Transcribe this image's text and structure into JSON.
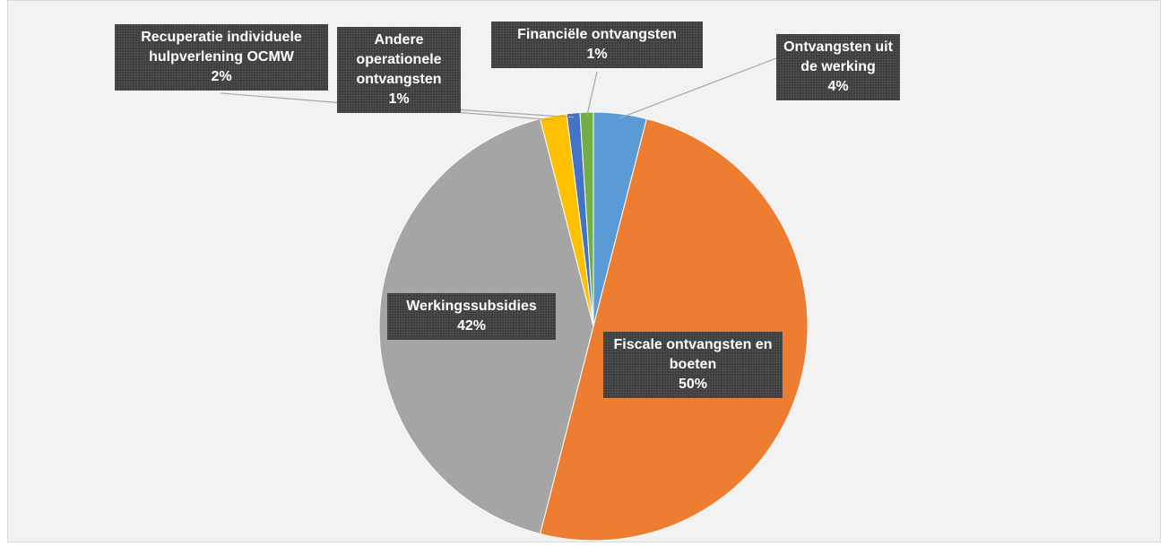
{
  "chart_data": {
    "type": "pie",
    "categories": [
      "Ontvangsten uit de werking",
      "Fiscale ontvangsten en boeten",
      "Werkingssubsidies",
      "Recuperatie individuele hulpverlening OCMW",
      "Andere operationele ontvangsten",
      "Financiële ontvangsten"
    ],
    "values": [
      4,
      50,
      42,
      2,
      1,
      1
    ],
    "value_labels": [
      "4%",
      "50%",
      "42%",
      "2%",
      "1%",
      "1%"
    ],
    "colors": [
      "#5b9bd5",
      "#ed7d31",
      "#a5a5a5",
      "#ffc000",
      "#4472c4",
      "#70ad47"
    ]
  }
}
